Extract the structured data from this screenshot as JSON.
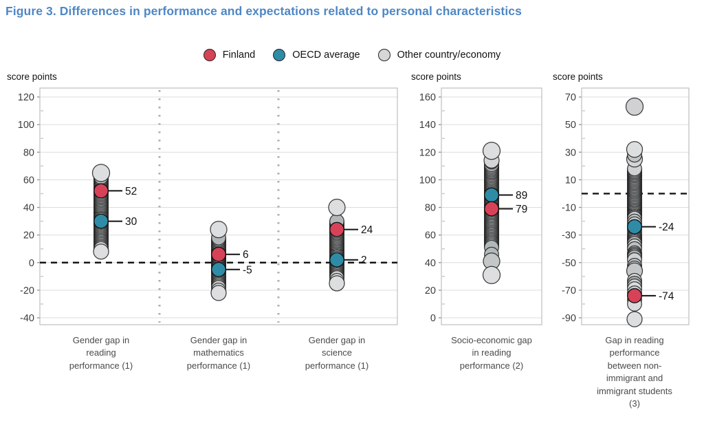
{
  "title": "Figure 3. Differences in performance and expectations related to personal characteristics",
  "axis_unit": "score points",
  "legend": [
    {
      "label": "Finland",
      "key": "finland"
    },
    {
      "label": "OECD average",
      "key": "oecd"
    },
    {
      "label": "Other country/economy",
      "key": "other"
    }
  ],
  "colors": {
    "finland": "#d64257",
    "oecd": "#2e8ca6",
    "other": "#d5d7d8",
    "title": "#4e87c5"
  },
  "chart_data": [
    {
      "type": "strip-dot",
      "ylabel": "score points",
      "ylim": [
        -40,
        120
      ],
      "ytick_step": 20,
      "grid": true,
      "zero_line_dashed": true,
      "strips": [
        {
          "category_lines": [
            "Gender gap in",
            "reading",
            "performance (1)"
          ],
          "highlights": [
            {
              "name": "Finland",
              "key": "finland",
              "value": 52,
              "label": "52"
            },
            {
              "name": "OECD average",
              "key": "oecd",
              "value": 30,
              "label": "30"
            }
          ],
          "others": [
            {
              "v": 65,
              "r": 12.5,
              "f": "#dcdedf"
            },
            62,
            61,
            60,
            59,
            58,
            57,
            56,
            55,
            54,
            53,
            51,
            50,
            49,
            48,
            47,
            46,
            45,
            44,
            43,
            42,
            41,
            40,
            39,
            38,
            37,
            36,
            35,
            34,
            33,
            32,
            31,
            29,
            28,
            27,
            26,
            25,
            24,
            23,
            22,
            21,
            20,
            19,
            18,
            17,
            16,
            15,
            14,
            13,
            12,
            11,
            {
              "v": 10,
              "f": "#d9dbdc"
            },
            {
              "v": 8,
              "r": 11,
              "f": "#dcdedf"
            }
          ]
        },
        {
          "category_lines": [
            "Gender gap in",
            "mathematics",
            "performance (1)"
          ],
          "highlights": [
            {
              "name": "Finland",
              "key": "finland",
              "value": 6,
              "label": "6"
            },
            {
              "name": "OECD average",
              "key": "oecd",
              "value": -5,
              "label": "-5"
            }
          ],
          "others": [
            {
              "v": 24,
              "r": 12,
              "f": "#dcdedf"
            },
            18,
            17,
            16,
            15,
            14,
            13,
            12,
            11,
            10,
            9,
            8,
            8,
            7,
            7,
            5,
            5,
            4,
            4,
            3,
            3,
            2,
            2,
            1,
            1,
            0,
            0,
            -1,
            -1,
            -2,
            -2,
            -3,
            -3,
            -4,
            -4,
            -6,
            -6,
            -7,
            -8,
            -9,
            -10,
            -11,
            -12,
            -13,
            -14,
            -15,
            -16,
            -17,
            -18,
            {
              "v": -20,
              "f": "#d9dbdc"
            },
            {
              "v": -22,
              "r": 11,
              "f": "#dcdedf"
            }
          ]
        },
        {
          "category_lines": [
            "Gender gap in",
            "science",
            "performance (1)"
          ],
          "highlights": [
            {
              "name": "Finland",
              "key": "finland",
              "value": 24,
              "label": "24"
            },
            {
              "name": "OECD average",
              "key": "oecd",
              "value": 2,
              "label": "2"
            }
          ],
          "others": [
            {
              "v": 40,
              "r": 12,
              "f": "#dcdedf"
            },
            30,
            29,
            28,
            27,
            26,
            25,
            23,
            22,
            21,
            20,
            19,
            18,
            17,
            16,
            15,
            14,
            13,
            12,
            11,
            10,
            9,
            8,
            7,
            6,
            5,
            4,
            3,
            1,
            0,
            -1,
            -2,
            -3,
            -4,
            -5,
            -6,
            -7,
            -8,
            -9,
            -10,
            -11,
            {
              "v": -13,
              "f": "#d9dbdc"
            },
            {
              "v": -15,
              "r": 11,
              "f": "#dcdedf"
            }
          ]
        }
      ]
    },
    {
      "type": "strip-dot",
      "ylabel": "score points",
      "ylim": [
        0,
        160
      ],
      "ytick_step": 20,
      "grid": true,
      "zero_line_dashed": false,
      "strips": [
        {
          "category_lines": [
            "Socio-economic gap",
            "in reading",
            "performance (2)"
          ],
          "highlights": [
            {
              "name": "OECD average",
              "key": "oecd",
              "value": 89,
              "label": "89"
            },
            {
              "name": "Finland",
              "key": "finland",
              "value": 79,
              "label": "79"
            }
          ],
          "others": [
            {
              "v": 121,
              "r": 12.5,
              "f": "#dcdedf"
            },
            {
              "v": 114,
              "r": 11,
              "f": "#d3d5d6"
            },
            113,
            111,
            110,
            109,
            108,
            107,
            106,
            105,
            104,
            103,
            102,
            101,
            100,
            99,
            98,
            97,
            96,
            95,
            94,
            93,
            92,
            91,
            90,
            88,
            87,
            86,
            85,
            84,
            83,
            82,
            81,
            80,
            78,
            77,
            76,
            75,
            74,
            73,
            72,
            71,
            70,
            69,
            68,
            67,
            66,
            65,
            64,
            63,
            62,
            61,
            60,
            59,
            58,
            57,
            56,
            55,
            54,
            53,
            52,
            51,
            {
              "v": 46,
              "f": "#b4b9bb"
            },
            {
              "v": 41,
              "r": 12,
              "f": "#c3c7c8"
            },
            {
              "v": 31,
              "r": 12.5,
              "f": "#dcdedf"
            }
          ]
        }
      ]
    },
    {
      "type": "strip-dot",
      "ylabel": "score points",
      "ylim": [
        -90,
        70
      ],
      "ytick_step": 20,
      "grid": true,
      "zero_line_dashed": true,
      "strips": [
        {
          "category_lines": [
            "Gap in reading",
            "performance",
            "between non-",
            "immigrant and",
            "immigrant students",
            "(3)"
          ],
          "highlights": [
            {
              "name": "OECD average",
              "key": "oecd",
              "value": -24,
              "label": "-24"
            },
            {
              "name": "Finland",
              "key": "finland",
              "value": -74,
              "label": "-74"
            }
          ],
          "others": [
            {
              "v": 63,
              "r": 12.5,
              "f": "#cfd1d2"
            },
            {
              "v": 32,
              "r": 11.5,
              "f": "#dcdedf"
            },
            28,
            {
              "v": 25,
              "r": 11.5,
              "f": "#d3d5d6"
            },
            18,
            17,
            16,
            15,
            14,
            13,
            12,
            11,
            10,
            9,
            8,
            7,
            6,
            5,
            4,
            3,
            2,
            1,
            0,
            -1,
            -2,
            -3,
            -4,
            -5,
            -6,
            -7,
            -8,
            -9,
            -10,
            -11,
            -12,
            -13,
            -14,
            -15,
            -16,
            -17,
            -18,
            -20,
            -22,
            -26,
            -28,
            -30,
            -31,
            -32,
            -33,
            -34,
            -35,
            -36,
            -38,
            -40,
            -43,
            -44,
            -45,
            -46,
            -48,
            -52,
            -54,
            {
              "v": -56,
              "r": 11.5,
              "f": "#c3c7c8"
            },
            {
              "v": -63,
              "f": "#d9dbdc"
            },
            -65,
            -67,
            {
              "v": -69,
              "f": "#d9dbdc"
            },
            -72,
            {
              "v": -77,
              "f": "#d9dbdc"
            },
            {
              "v": -80,
              "f": "#d9dbdc"
            },
            {
              "v": -91,
              "r": 11,
              "f": "#dcdedf"
            }
          ]
        }
      ]
    }
  ]
}
